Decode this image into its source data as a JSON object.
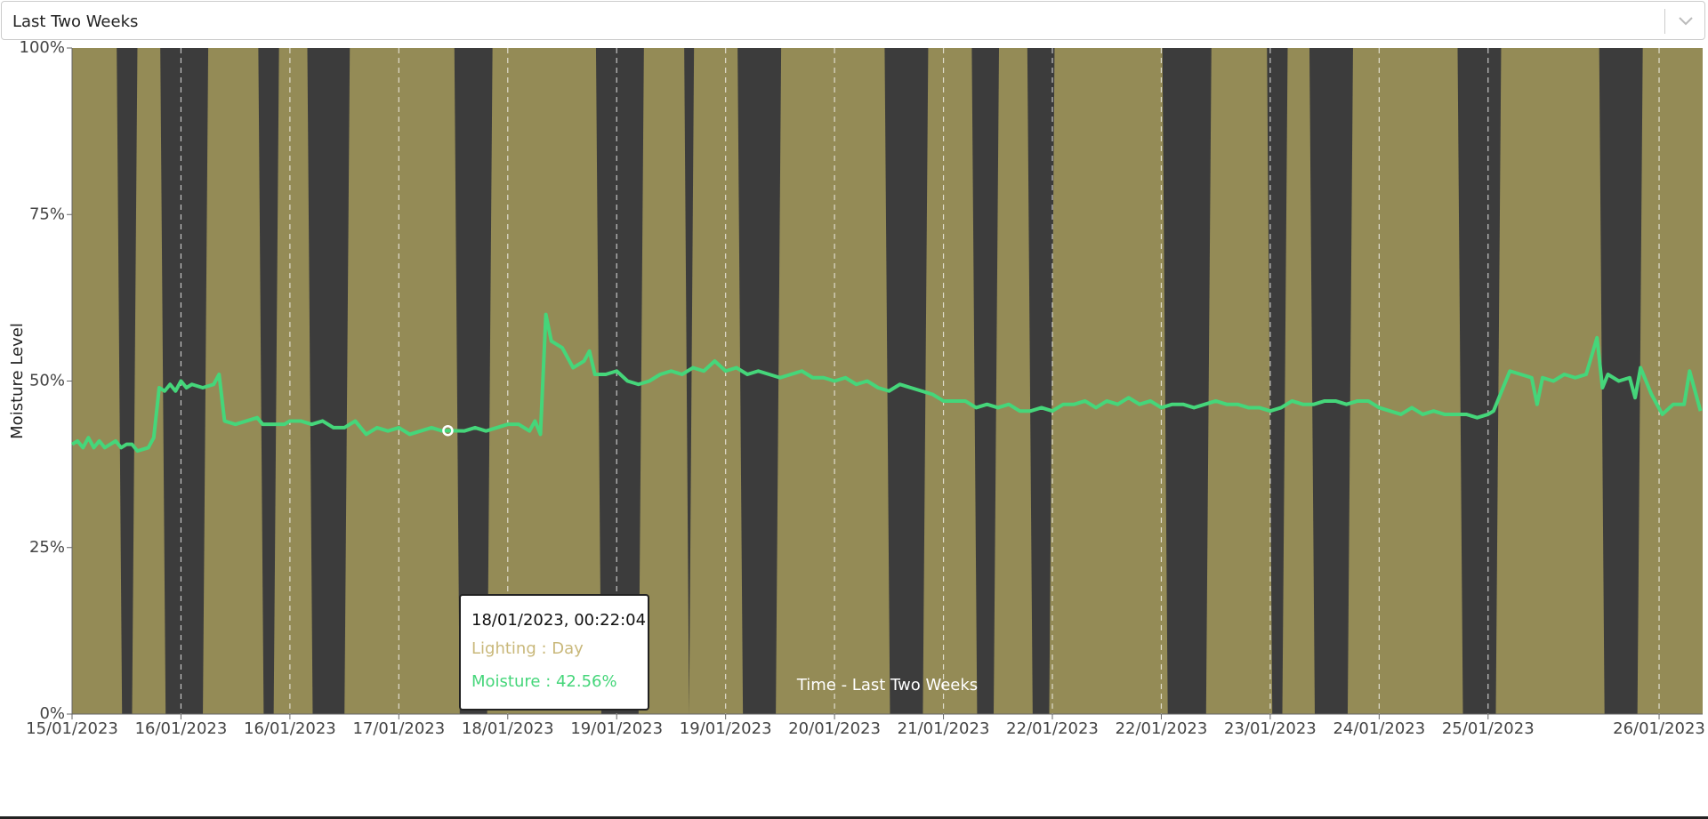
{
  "dropdown": {
    "selected": "Last Two Weeks"
  },
  "chart_data": {
    "type": "line",
    "xlabel": "Time - Last Two Weeks",
    "ylabel": "Moisture Level",
    "xlim": [
      0,
      14.97
    ],
    "ylim": [
      0,
      100
    ],
    "xticks": [
      {
        "value": 0,
        "label": "15/01/2023"
      },
      {
        "value": 1,
        "label": "16/01/2023"
      },
      {
        "value": 2,
        "label": "16/01/2023"
      },
      {
        "value": 3,
        "label": "17/01/2023"
      },
      {
        "value": 4,
        "label": "18/01/2023"
      },
      {
        "value": 5,
        "label": "19/01/2023"
      },
      {
        "value": 6,
        "label": "19/01/2023"
      },
      {
        "value": 7,
        "label": "20/01/2023"
      },
      {
        "value": 8,
        "label": "21/01/2023"
      },
      {
        "value": 9,
        "label": "22/01/2023"
      },
      {
        "value": 10,
        "label": "22/01/2023"
      },
      {
        "value": 11,
        "label": "23/01/2023"
      },
      {
        "value": 12,
        "label": "24/01/2023"
      },
      {
        "value": 13,
        "label": "25/01/2023"
      },
      {
        "value": 14.57,
        "label": "26/01/2023"
      }
    ],
    "yticks": [
      {
        "value": 0,
        "label": "0%"
      },
      {
        "value": 25,
        "label": "25%"
      },
      {
        "value": 50,
        "label": "50%"
      },
      {
        "value": 75,
        "label": "75%"
      },
      {
        "value": 100,
        "label": "100%"
      }
    ],
    "day_color": "#948b56",
    "night_color": "#3c3c3c",
    "night": [
      [
        0.41,
        0.6
      ],
      [
        0.81,
        1.25
      ],
      [
        1.71,
        1.9
      ],
      [
        2.16,
        2.55
      ],
      [
        3.51,
        3.86
      ],
      [
        4.81,
        5.25
      ],
      [
        5.62,
        5.71
      ],
      [
        6.11,
        6.51
      ],
      [
        7.46,
        7.86
      ],
      [
        8.26,
        8.51
      ],
      [
        8.77,
        9.02
      ],
      [
        10.01,
        10.46
      ],
      [
        10.97,
        11.16
      ],
      [
        11.36,
        11.76
      ],
      [
        12.72,
        13.12
      ],
      [
        14.02,
        14.42
      ]
    ],
    "series": [
      {
        "color": "#45d67a",
        "x": [
          0,
          0.05,
          0.1,
          0.15,
          0.2,
          0.25,
          0.3,
          0.35,
          0.4,
          0.45,
          0.5,
          0.55,
          0.6,
          0.7,
          0.75,
          0.8,
          0.85,
          0.9,
          0.95,
          1.0,
          1.05,
          1.1,
          1.2,
          1.3,
          1.35,
          1.4,
          1.5,
          1.6,
          1.7,
          1.75,
          1.85,
          1.95,
          2.0,
          2.1,
          2.2,
          2.3,
          2.4,
          2.5,
          2.6,
          2.7,
          2.8,
          2.9,
          3.0,
          3.1,
          3.2,
          3.3,
          3.4,
          3.45,
          3.6,
          3.7,
          3.8,
          3.9,
          4.0,
          4.1,
          4.2,
          4.25,
          4.3,
          4.35,
          4.4,
          4.5,
          4.6,
          4.7,
          4.75,
          4.8,
          4.9,
          5.0,
          5.1,
          5.2,
          5.3,
          5.4,
          5.5,
          5.6,
          5.7,
          5.8,
          5.9,
          6.0,
          6.1,
          6.2,
          6.3,
          6.4,
          6.5,
          6.6,
          6.7,
          6.8,
          6.9,
          7.0,
          7.1,
          7.2,
          7.3,
          7.4,
          7.5,
          7.6,
          7.7,
          7.8,
          7.9,
          8.0,
          8.1,
          8.2,
          8.3,
          8.4,
          8.5,
          8.6,
          8.7,
          8.8,
          8.9,
          9.0,
          9.1,
          9.2,
          9.3,
          9.4,
          9.5,
          9.6,
          9.7,
          9.8,
          9.9,
          10.0,
          10.1,
          10.2,
          10.3,
          10.4,
          10.5,
          10.6,
          10.7,
          10.8,
          10.9,
          11.0,
          11.1,
          11.2,
          11.3,
          11.4,
          11.5,
          11.6,
          11.7,
          11.8,
          11.9,
          12.0,
          12.1,
          12.2,
          12.3,
          12.4,
          12.5,
          12.6,
          12.7,
          12.8,
          12.9,
          13.0,
          13.05,
          13.2,
          13.3,
          13.4,
          13.45,
          13.5,
          13.6,
          13.7,
          13.8,
          13.9,
          14.0,
          14.05,
          14.1,
          14.2,
          14.3,
          14.35,
          14.4,
          14.5,
          14.6,
          14.7,
          14.8,
          14.85,
          14.95
        ],
        "values": [
          40.5,
          41,
          40,
          41.5,
          40,
          41,
          40,
          40.5,
          41,
          40,
          40.5,
          40.5,
          39.5,
          40,
          41.5,
          49,
          48.5,
          49.5,
          48.5,
          50,
          49,
          49.5,
          49,
          49.5,
          51,
          44,
          43.5,
          44,
          44.5,
          43.5,
          43.5,
          43.5,
          44,
          44,
          43.5,
          44,
          43,
          43,
          44,
          42,
          43,
          42.5,
          43,
          42,
          42.5,
          43,
          42.5,
          42.56,
          42.5,
          43,
          42.5,
          43,
          43.5,
          43.5,
          42.5,
          44,
          42,
          60,
          56,
          55,
          52,
          53,
          54.5,
          51,
          51,
          51.5,
          50,
          49.5,
          50,
          51,
          51.5,
          51,
          52,
          51.5,
          53,
          51.5,
          52,
          51,
          51.5,
          51,
          50.5,
          51,
          51.5,
          50.5,
          50.5,
          50,
          50.5,
          49.5,
          50,
          49,
          48.5,
          49.5,
          49,
          48.5,
          48,
          47,
          47,
          47,
          46,
          46.5,
          46,
          46.5,
          45.5,
          45.5,
          46,
          45.5,
          46.5,
          46.5,
          47,
          46,
          47,
          46.5,
          47.5,
          46.5,
          47,
          46,
          46.5,
          46.5,
          46,
          46.5,
          47,
          46.5,
          46.5,
          46,
          46,
          45.5,
          46,
          47,
          46.5,
          46.5,
          47,
          47,
          46.5,
          47,
          47,
          46,
          45.5,
          45,
          46,
          45,
          45.5,
          45,
          45,
          45,
          44.5,
          45,
          45.5,
          51.5,
          51,
          50.5,
          46.5,
          50.5,
          50,
          51,
          50.5,
          51,
          56.5,
          49,
          51,
          50,
          50.5,
          47.5,
          52,
          48,
          45,
          46.5,
          46.5,
          51.5,
          45.5
        ]
      }
    ],
    "tooltip": {
      "point": 47,
      "time": "18/01/2023, 00:22:04",
      "lighting": "Lighting : Day",
      "moisture": "Moisture : 42.56%",
      "lighting_color": "#c9b87a"
    }
  }
}
